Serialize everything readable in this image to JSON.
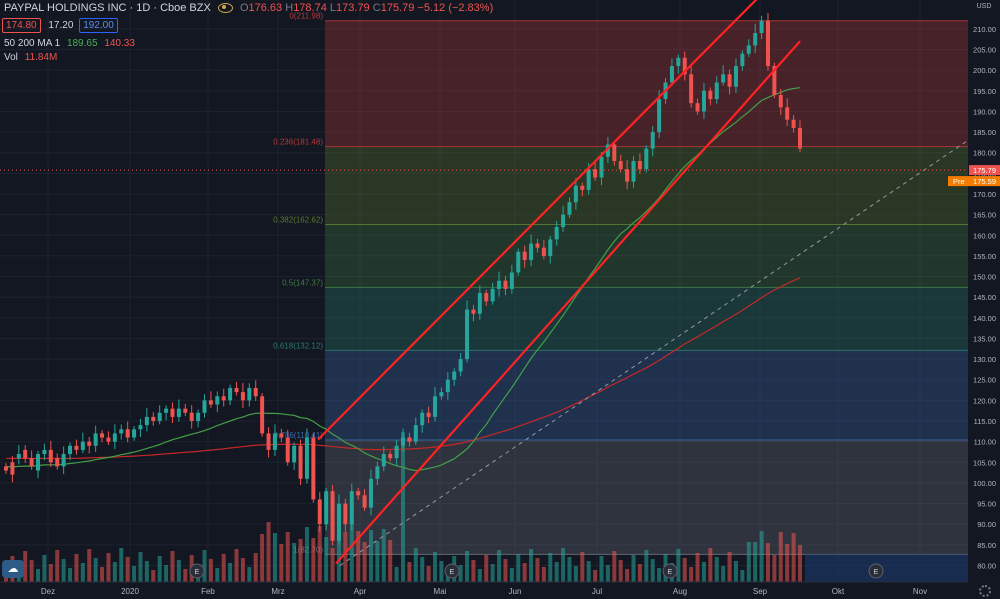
{
  "header": {
    "symbol": "PAYPAL HOLDINGS INC · 1D · Cboe BZX",
    "o_label": "O",
    "o_value": "176.63",
    "h_label": "H",
    "h_value": "178.74",
    "l_label": "L",
    "l_value": "173.79",
    "c_label": "C",
    "c_value": "175.79 −5.12 (−2.83%)"
  },
  "quote": {
    "bid": "174.80",
    "spread": "17.20",
    "ask": "192.00"
  },
  "indicators": {
    "ma_label": "50 200 MA 1",
    "ma50": "189.65",
    "ma200": "140.33",
    "vol_label": "Vol",
    "vol_value": "11.84M"
  },
  "colors": {
    "background": "#131722",
    "up": "#26a69a",
    "down": "#ef5350",
    "ma50": "#43a047",
    "ma200": "#c62828",
    "channel": "#ff2222",
    "fib_0_236": "#b2393a",
    "fib_236_382": "#5a7a2e",
    "fib_382_5": "#3f7a42",
    "fib_5_618": "#2b7a6e",
    "fib_618_786": "#3a68a8",
    "fib_786_1": "#6b6e78"
  },
  "icons": [
    "eye-icon",
    "tradingview-logo-icon",
    "earnings-icon",
    "settings-gear-icon"
  ],
  "chart_data": {
    "type": "candlestick",
    "title": "PAYPAL HOLDINGS INC · 1D · Cboe BZX",
    "price_unit": "USD",
    "ylim": [
      76,
      217
    ],
    "y_ticks": [
      80,
      85,
      90,
      95,
      100,
      105,
      110,
      115,
      120,
      125,
      130,
      135,
      140,
      145,
      150,
      155,
      160,
      165,
      170,
      175,
      180,
      185,
      190,
      195,
      200,
      205,
      210
    ],
    "y_tick_labels": [
      "80.00",
      "85.00",
      "90.00",
      "95.00",
      "100.00",
      "105.00",
      "110.00",
      "115.00",
      "120.00",
      "125.00",
      "130.00",
      "135.00",
      "140.00",
      "145.00",
      "150.00",
      "155.00",
      "160.00",
      "165.00",
      "170.00",
      "175.00",
      "180.00",
      "185.00",
      "190.00",
      "195.00",
      "200.00",
      "205.00",
      "210.00"
    ],
    "x_labels": [
      "Dez",
      "2020",
      "Feb",
      "Mrz",
      "Apr",
      "Mai",
      "Jun",
      "Jul",
      "Aug",
      "Sep",
      "Okt",
      "Nov"
    ],
    "last_price": {
      "label": "175.79",
      "value": 175.79
    },
    "premarket_price": {
      "label": "Pre",
      "value": "175.59"
    },
    "fibonacci": {
      "top": 211.98,
      "bottom": 82.7,
      "levels": [
        {
          "ratio": "0",
          "price": 211.98,
          "label": "0(211.98)"
        },
        {
          "ratio": "0.236",
          "price": 181.48,
          "label": "0.236(181.48)"
        },
        {
          "ratio": "0.382",
          "price": 162.62,
          "label": "0.382(162.62)"
        },
        {
          "ratio": "0.5",
          "price": 147.37,
          "label": "0.5(147.37)"
        },
        {
          "ratio": "0.618",
          "price": 132.12,
          "label": "0.618(132.12)"
        },
        {
          "ratio": "0.786",
          "price": 110.41,
          "label": "0.786(110.41)"
        },
        {
          "ratio": "1",
          "price": 82.7,
          "label": "1(82.70)"
        }
      ]
    },
    "earnings_markers": [
      "E",
      "E",
      "E",
      "E"
    ],
    "price_path": [
      [
        104,
        103
      ],
      [
        105,
        102
      ],
      [
        106,
        107
      ],
      [
        108,
        106
      ],
      [
        106,
        104
      ],
      [
        103,
        107
      ],
      [
        107,
        108
      ],
      [
        108,
        105
      ],
      [
        106,
        104
      ],
      [
        104,
        107
      ],
      [
        107,
        109
      ],
      [
        109,
        108
      ],
      [
        108,
        110
      ],
      [
        110,
        109
      ],
      [
        109,
        112
      ],
      [
        112,
        111
      ],
      [
        111,
        110
      ],
      [
        110,
        112
      ],
      [
        112,
        113
      ],
      [
        113,
        111
      ],
      [
        111,
        113
      ],
      [
        113,
        114
      ],
      [
        114,
        116
      ],
      [
        116,
        115
      ],
      [
        115,
        117
      ],
      [
        117,
        118
      ],
      [
        118,
        116
      ],
      [
        116,
        118
      ],
      [
        118,
        117
      ],
      [
        117,
        115
      ],
      [
        115,
        117
      ],
      [
        117,
        120
      ],
      [
        120,
        119
      ],
      [
        119,
        121
      ],
      [
        121,
        120
      ],
      [
        120,
        123
      ],
      [
        123,
        122
      ],
      [
        122,
        120
      ],
      [
        120,
        123
      ],
      [
        123,
        121
      ],
      [
        121,
        112
      ],
      [
        112,
        108
      ],
      [
        108,
        112
      ],
      [
        112,
        111
      ],
      [
        111,
        105
      ],
      [
        105,
        109
      ],
      [
        109,
        101
      ],
      [
        101,
        111
      ],
      [
        111,
        96
      ],
      [
        96,
        90
      ],
      [
        90,
        98
      ],
      [
        98,
        86
      ],
      [
        86,
        95
      ],
      [
        95,
        90
      ],
      [
        90,
        98
      ],
      [
        98,
        97
      ],
      [
        97,
        94
      ],
      [
        94,
        101
      ],
      [
        101,
        104
      ],
      [
        104,
        107
      ],
      [
        107,
        106
      ],
      [
        106,
        109
      ],
      [
        109,
        111
      ],
      [
        111,
        110
      ],
      [
        110,
        114
      ],
      [
        114,
        117
      ],
      [
        117,
        116
      ],
      [
        116,
        121
      ],
      [
        121,
        122
      ],
      [
        122,
        125
      ],
      [
        125,
        127
      ],
      [
        127,
        130
      ],
      [
        130,
        142
      ],
      [
        142,
        141
      ],
      [
        141,
        146
      ],
      [
        146,
        144
      ],
      [
        144,
        147
      ],
      [
        147,
        149
      ],
      [
        149,
        147
      ],
      [
        147,
        151
      ],
      [
        151,
        156
      ],
      [
        156,
        154
      ],
      [
        154,
        158
      ],
      [
        158,
        157
      ],
      [
        157,
        155
      ],
      [
        155,
        159
      ],
      [
        159,
        162
      ],
      [
        162,
        165
      ],
      [
        165,
        168
      ],
      [
        168,
        172
      ],
      [
        172,
        171
      ],
      [
        171,
        176
      ],
      [
        176,
        174
      ],
      [
        174,
        179
      ],
      [
        179,
        182
      ],
      [
        182,
        178
      ],
      [
        178,
        176
      ],
      [
        176,
        173
      ],
      [
        173,
        178
      ],
      [
        178,
        176
      ],
      [
        176,
        181
      ],
      [
        181,
        185
      ],
      [
        185,
        193
      ],
      [
        193,
        197
      ],
      [
        197,
        201
      ],
      [
        201,
        203
      ],
      [
        203,
        199
      ],
      [
        199,
        192
      ],
      [
        192,
        190
      ],
      [
        190,
        195
      ],
      [
        195,
        193
      ],
      [
        193,
        197
      ],
      [
        197,
        199
      ],
      [
        199,
        196
      ],
      [
        196,
        201
      ],
      [
        201,
        204
      ],
      [
        204,
        206
      ],
      [
        206,
        209
      ],
      [
        209,
        212
      ],
      [
        212,
        201
      ],
      [
        201,
        194
      ],
      [
        194,
        191
      ],
      [
        191,
        188
      ],
      [
        188,
        186
      ],
      [
        186,
        181
      ]
    ]
  }
}
